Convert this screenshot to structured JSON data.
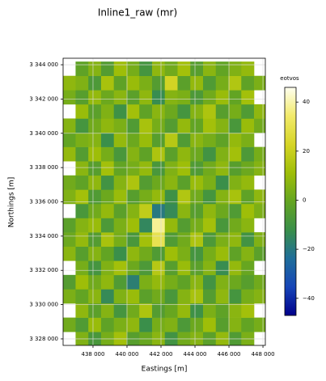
{
  "chart_data": {
    "type": "heatmap",
    "title": "Inline1_raw (mr)",
    "x_label": "Eastings [m]",
    "y_label": "Northings [m]",
    "colorbar_label": "eotvos",
    "x": [
      436600,
      437350,
      438100,
      438850,
      439600,
      440350,
      441100,
      441850,
      442600,
      443350,
      444100,
      444850,
      445600,
      446350,
      447100,
      447850
    ],
    "y": [
      3328000,
      3328830,
      3329660,
      3330490,
      3331320,
      3332150,
      3332980,
      3333810,
      3334640,
      3335470,
      3336300,
      3337130,
      3337960,
      3338790,
      3339620,
      3340450,
      3341280,
      3342110,
      3342940,
      3343770
    ],
    "z": [
      [
        null,
        5,
        -8,
        3,
        12,
        -4,
        0,
        7,
        -10,
        2,
        6,
        -3,
        9,
        -6,
        4,
        null
      ],
      [
        2,
        -6,
        10,
        -2,
        4,
        8,
        -12,
        3,
        5,
        -7,
        1,
        11,
        -4,
        6,
        -1,
        3
      ],
      [
        null,
        8,
        -3,
        6,
        -9,
        2,
        14,
        -5,
        0,
        9,
        -11,
        4,
        -2,
        7,
        12,
        null
      ],
      [
        4,
        -1,
        7,
        -14,
        5,
        10,
        -3,
        2,
        -8,
        6,
        13,
        -5,
        8,
        -9,
        3,
        6
      ],
      [
        -5,
        11,
        2,
        8,
        -6,
        -18,
        4,
        9,
        3,
        -2,
        7,
        -10,
        5,
        1,
        -4,
        2
      ],
      [
        null,
        3,
        -9,
        5,
        12,
        1,
        -7,
        16,
        -4,
        10,
        -3,
        6,
        -13,
        9,
        0,
        null
      ],
      [
        7,
        -4,
        6,
        -1,
        -12,
        8,
        2,
        -6,
        11,
        4,
        -9,
        3,
        10,
        -2,
        6,
        -3
      ],
      [
        1,
        9,
        -5,
        13,
        3,
        -8,
        12,
        30,
        -6,
        2,
        14,
        -7,
        4,
        8,
        -10,
        5
      ],
      [
        -3,
        6,
        10,
        -7,
        4,
        11,
        -15,
        38,
        9,
        -5,
        3,
        12,
        -8,
        2,
        7,
        null
      ],
      [
        null,
        -8,
        2,
        9,
        -3,
        6,
        18,
        -20,
        -14,
        7,
        -4,
        8,
        1,
        -6,
        11,
        4
      ],
      [
        5,
        12,
        -6,
        1,
        10,
        -4,
        3,
        9,
        -11,
        15,
        2,
        -9,
        6,
        13,
        -2,
        8
      ],
      [
        2,
        -2,
        8,
        -10,
        6,
        14,
        -5,
        1,
        7,
        -3,
        10,
        4,
        -12,
        5,
        9,
        null
      ],
      [
        null,
        7,
        -4,
        12,
        -1,
        3,
        9,
        -8,
        5,
        11,
        -6,
        2,
        8,
        -4,
        1,
        6
      ],
      [
        9,
        -5,
        11,
        3,
        -8,
        6,
        -2,
        14,
        -3,
        8,
        1,
        -10,
        5,
        12,
        -7,
        3
      ],
      [
        -1,
        4,
        6,
        -12,
        9,
        1,
        10,
        -4,
        16,
        -6,
        7,
        3,
        -2,
        9,
        4,
        null
      ],
      [
        6,
        -9,
        2,
        8,
        4,
        -6,
        13,
        3,
        -5,
        9,
        -1,
        12,
        6,
        -8,
        10,
        2
      ],
      [
        null,
        10,
        -3,
        5,
        -11,
        12,
        -2,
        7,
        1,
        -9,
        6,
        14,
        -4,
        3,
        -6,
        8
      ],
      [
        3,
        -4,
        9,
        1,
        7,
        -3,
        8,
        -13,
        6,
        4,
        -7,
        2,
        10,
        -1,
        12,
        null
      ],
      [
        8,
        5,
        -7,
        13,
        -2,
        10,
        4,
        -5,
        22,
        -3,
        9,
        -6,
        3,
        15,
        -2,
        4
      ],
      [
        null,
        -2,
        6,
        -5,
        11,
        3,
        -9,
        8,
        2,
        12,
        -4,
        7,
        -1,
        5,
        9,
        null
      ]
    ],
    "xlim": [
      436240,
      448140
    ],
    "ylim": [
      3327620,
      3344380
    ],
    "xticks": [
      {
        "value": 438000,
        "label": "438 000"
      },
      {
        "value": 440000,
        "label": "440 000"
      },
      {
        "value": 442000,
        "label": "442 000"
      },
      {
        "value": 444000,
        "label": "444 000"
      },
      {
        "value": 446000,
        "label": "446 000"
      },
      {
        "value": 448000,
        "label": "448 000"
      }
    ],
    "yticks": [
      {
        "value": 3328000,
        "label": "3 328 000"
      },
      {
        "value": 3330000,
        "label": "3 330 000"
      },
      {
        "value": 3332000,
        "label": "3 332 000"
      },
      {
        "value": 3334000,
        "label": "3 334 000"
      },
      {
        "value": 3336000,
        "label": "3 336 000"
      },
      {
        "value": 3338000,
        "label": "3 338 000"
      },
      {
        "value": 3340000,
        "label": "3 340 000"
      },
      {
        "value": 3342000,
        "label": "3 342 000"
      },
      {
        "value": 3344000,
        "label": "3 344 000"
      }
    ],
    "clim": [
      -47,
      46
    ],
    "cticks": [
      {
        "value": -40,
        "label": "−40"
      },
      {
        "value": -20,
        "label": "−20"
      },
      0,
      20,
      40
    ],
    "colormap": [
      "#00008b",
      "#1746b8",
      "#1f6e9a",
      "#3a8f4a",
      "#64a521",
      "#9fbe08",
      "#d6d526",
      "#f2ea6a",
      "#fffff0"
    ],
    "grid": true
  }
}
